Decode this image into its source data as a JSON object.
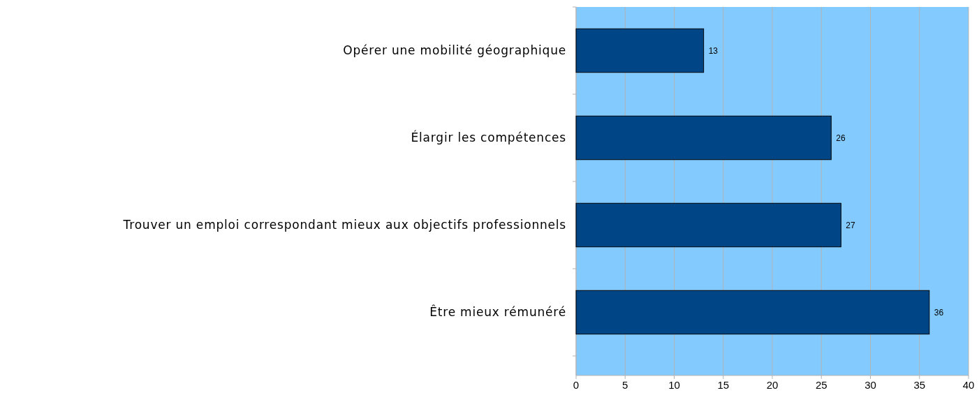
{
  "chart_data": {
    "type": "bar",
    "orientation": "horizontal",
    "categories": [
      "Opérer une mobilité géographique",
      "Élargir les compétences",
      "Trouver un emploi correspondant mieux aux objectifs professionnels",
      "Être mieux rémunéré"
    ],
    "values": [
      13,
      26,
      27,
      36
    ],
    "color": "#004586",
    "xlim": [
      0,
      40
    ],
    "xticks": [
      0,
      5,
      10,
      15,
      20,
      25,
      30,
      35,
      40
    ],
    "grid": "x",
    "data_labels": true
  }
}
